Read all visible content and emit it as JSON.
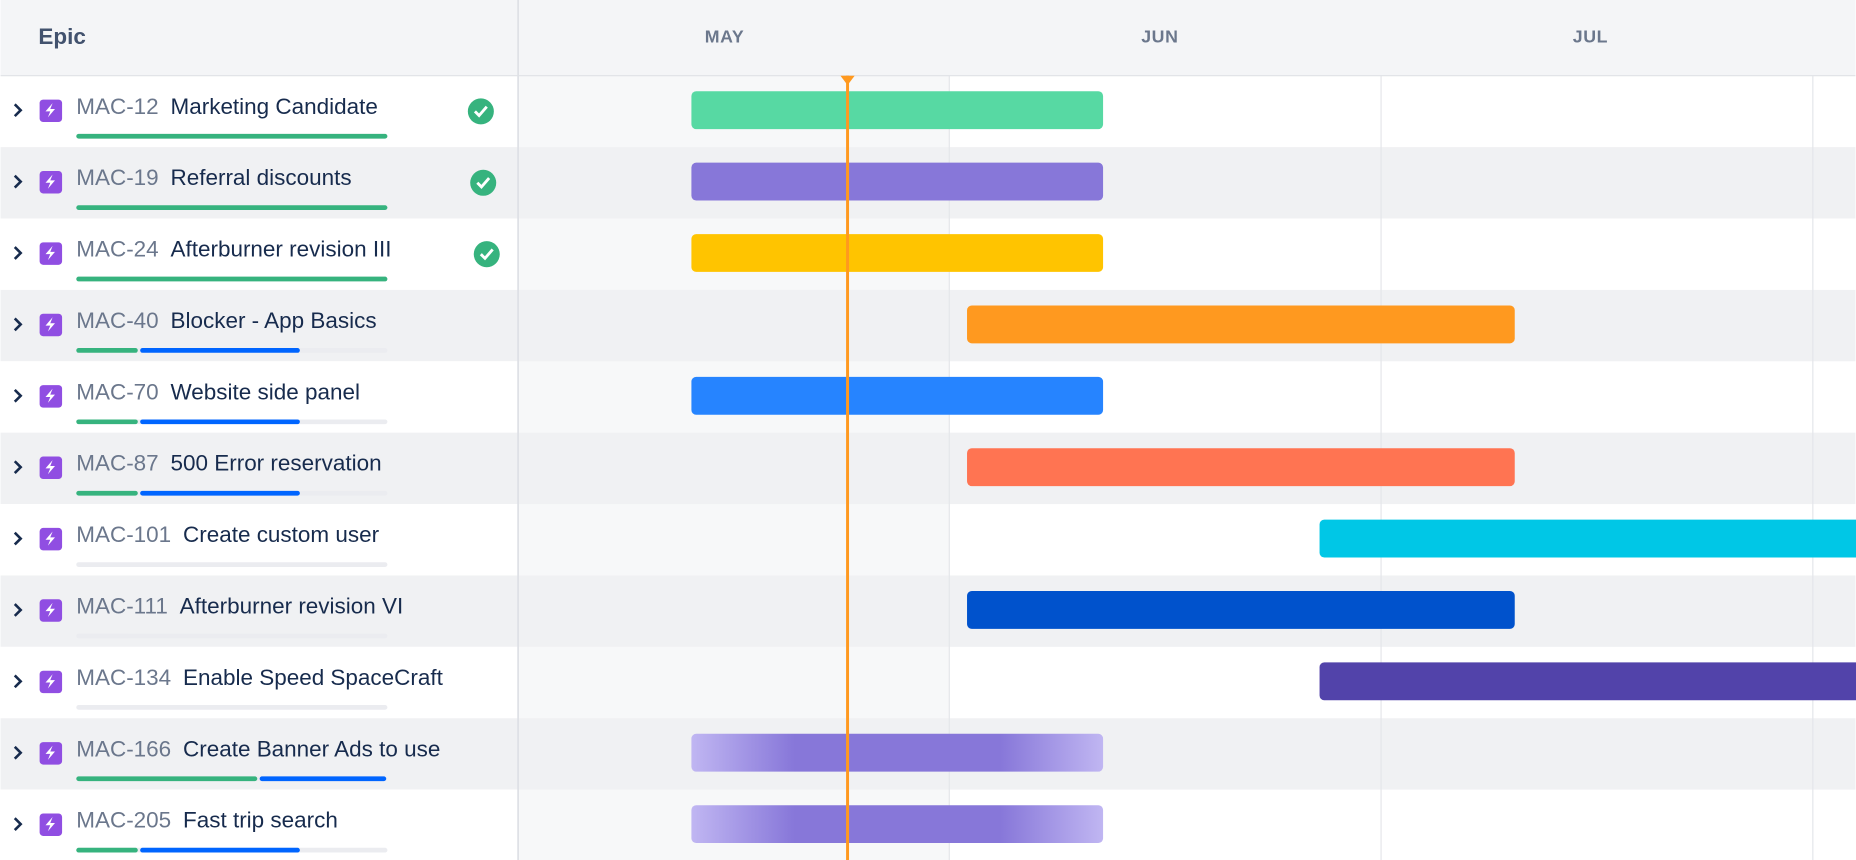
{
  "header": {
    "title": "Epic",
    "months": [
      "MAY",
      "JUN",
      "JUL"
    ]
  },
  "epics": [
    {
      "key": "MAC-12",
      "title": "Marketing Candidate",
      "done": true
    },
    {
      "key": "MAC-19",
      "title": "Referral discounts",
      "done": true
    },
    {
      "key": "MAC-24",
      "title": "Afterburner revision III",
      "done": true
    },
    {
      "key": "MAC-40",
      "title": "Blocker - App Basics",
      "done": false
    },
    {
      "key": "MAC-70",
      "title": "Website side panel",
      "done": false
    },
    {
      "key": "MAC-87",
      "title": "500 Error reservation",
      "done": false
    },
    {
      "key": "MAC-101",
      "title": "Create custom user",
      "done": false
    },
    {
      "key": "MAC-111",
      "title": "Afterburner revision VI",
      "done": false
    },
    {
      "key": "MAC-134",
      "title": "Enable Speed SpaceCraft",
      "done": false
    },
    {
      "key": "MAC-166",
      "title": "Create Banner Ads to use",
      "done": false
    },
    {
      "key": "MAC-205",
      "title": "Fast trip search",
      "done": false
    }
  ]
}
